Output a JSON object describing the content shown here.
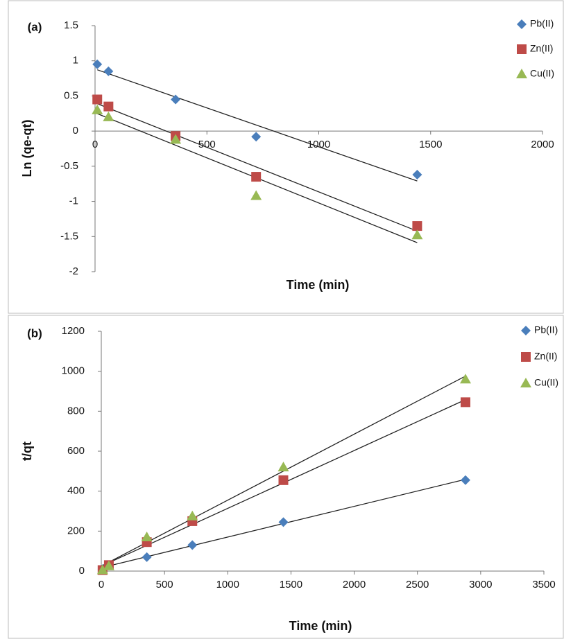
{
  "chart_data": [
    {
      "type": "scatter",
      "panel_label": "(a)",
      "x_label": "Time (min)",
      "y_label": "Ln (qe-qt)",
      "x": [
        10,
        60,
        360,
        720,
        1440
      ],
      "series": [
        {
          "name": "Pb(II)",
          "color": "#4a7ebb",
          "marker": "diamond",
          "values": [
            0.95,
            0.85,
            0.45,
            -0.08,
            -0.62
          ]
        },
        {
          "name": "Zn(II)",
          "color": "#be4b48",
          "marker": "square",
          "values": [
            0.45,
            0.35,
            -0.07,
            -0.65,
            -1.35
          ]
        },
        {
          "name": "Cu(II)",
          "color": "#98b954",
          "marker": "triangle",
          "values": [
            0.3,
            0.2,
            -0.12,
            -0.92,
            -1.48
          ]
        }
      ],
      "xlim": [
        0,
        2000
      ],
      "xticks": [
        0,
        500,
        1000,
        1500,
        2000
      ],
      "ylim": [
        -2,
        1.5
      ],
      "yticks": [
        -2,
        -1.5,
        -1,
        -0.5,
        0,
        0.5,
        1,
        1.5
      ],
      "trendline": true,
      "legend": "right"
    },
    {
      "type": "scatter",
      "panel_label": "(b)",
      "x_label": "Time (min)",
      "y_label": "t/qt",
      "x": [
        10,
        60,
        360,
        720,
        1440,
        2880
      ],
      "series": [
        {
          "name": "Pb(II)",
          "color": "#4a7ebb",
          "marker": "diamond",
          "values": [
            10,
            30,
            70,
            130,
            245,
            455
          ]
        },
        {
          "name": "Zn(II)",
          "color": "#be4b48",
          "marker": "square",
          "values": [
            5,
            30,
            145,
            250,
            455,
            845
          ]
        },
        {
          "name": "Cu(II)",
          "color": "#98b954",
          "marker": "triangle",
          "values": [
            5,
            25,
            170,
            275,
            520,
            960
          ]
        }
      ],
      "xlim": [
        0,
        3500
      ],
      "xticks": [
        0,
        500,
        1000,
        1500,
        2000,
        2500,
        3000,
        3500
      ],
      "ylim": [
        0,
        1200
      ],
      "yticks": [
        0,
        200,
        400,
        600,
        800,
        1000,
        1200
      ],
      "trendline": true,
      "legend": "right"
    }
  ]
}
